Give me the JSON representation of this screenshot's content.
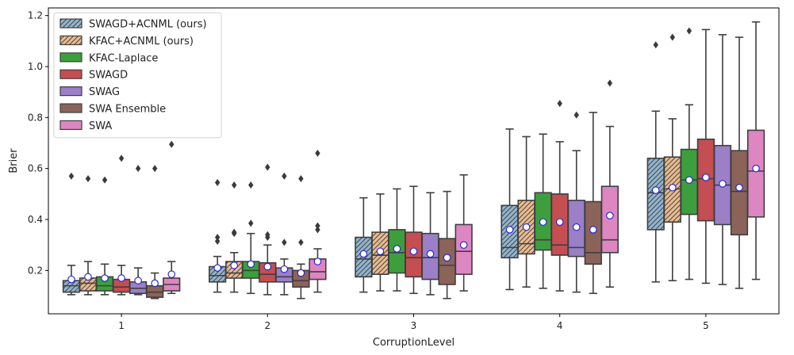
{
  "chart_data": {
    "type": "box",
    "title": "",
    "xlabel": "CorruptionLevel",
    "ylabel": "Brier",
    "categories": [
      "1",
      "2",
      "3",
      "4",
      "5"
    ],
    "ylim": [
      0.03,
      1.23
    ],
    "yticks": [
      0.2,
      0.4,
      0.6,
      0.8,
      1.0,
      1.2
    ],
    "ytick_labels": [
      "0.2",
      "0.4",
      "0.6",
      "0.8",
      "1.0",
      "1.2"
    ],
    "legend_position": "top-left",
    "series": [
      {
        "name": "SWAGD+ACNML (ours)",
        "color": "#92b3cc",
        "hatch": "diagonal",
        "boxes": [
          {
            "whislo": 0.105,
            "q1": 0.115,
            "median": 0.14,
            "q3": 0.16,
            "whishi": 0.22,
            "mean": 0.165,
            "fliers": [
              0.57
            ]
          },
          {
            "whislo": 0.115,
            "q1": 0.155,
            "median": 0.18,
            "q3": 0.215,
            "whishi": 0.255,
            "mean": 0.21,
            "fliers": [
              0.315,
              0.33,
              0.545
            ]
          },
          {
            "whislo": 0.115,
            "q1": 0.175,
            "median": 0.245,
            "q3": 0.33,
            "whishi": 0.485,
            "mean": 0.265,
            "fliers": []
          },
          {
            "whislo": 0.125,
            "q1": 0.25,
            "median": 0.29,
            "q3": 0.455,
            "whishi": 0.755,
            "mean": 0.36,
            "fliers": []
          },
          {
            "whislo": 0.155,
            "q1": 0.36,
            "median": 0.505,
            "q3": 0.64,
            "whishi": 0.825,
            "mean": 0.515,
            "fliers": [
              1.085
            ]
          }
        ]
      },
      {
        "name": "KFAC+ACNML (ours)",
        "color": "#e8ba8f",
        "hatch": "diagonal",
        "boxes": [
          {
            "whislo": 0.105,
            "q1": 0.12,
            "median": 0.15,
            "q3": 0.17,
            "whishi": 0.235,
            "mean": 0.175,
            "fliers": [
              0.56
            ]
          },
          {
            "whislo": 0.115,
            "q1": 0.17,
            "median": 0.19,
            "q3": 0.235,
            "whishi": 0.27,
            "mean": 0.22,
            "fliers": [
              0.345,
              0.35,
              0.535
            ]
          },
          {
            "whislo": 0.12,
            "q1": 0.185,
            "median": 0.26,
            "q3": 0.35,
            "whishi": 0.5,
            "mean": 0.275,
            "fliers": []
          },
          {
            "whislo": 0.135,
            "q1": 0.265,
            "median": 0.305,
            "q3": 0.475,
            "whishi": 0.725,
            "mean": 0.37,
            "fliers": []
          },
          {
            "whislo": 0.16,
            "q1": 0.39,
            "median": 0.52,
            "q3": 0.645,
            "whishi": 0.795,
            "mean": 0.525,
            "fliers": [
              1.115
            ]
          }
        ]
      },
      {
        "name": "KFAC-Laplace",
        "color": "#3d9e3d",
        "hatch": "none",
        "boxes": [
          {
            "whislo": 0.105,
            "q1": 0.12,
            "median": 0.14,
            "q3": 0.175,
            "whishi": 0.225,
            "mean": 0.17,
            "fliers": [
              0.555
            ]
          },
          {
            "whislo": 0.11,
            "q1": 0.17,
            "median": 0.2,
            "q3": 0.235,
            "whishi": 0.345,
            "mean": 0.225,
            "fliers": [
              0.385,
              0.535
            ]
          },
          {
            "whislo": 0.12,
            "q1": 0.19,
            "median": 0.27,
            "q3": 0.36,
            "whishi": 0.52,
            "mean": 0.285,
            "fliers": []
          },
          {
            "whislo": 0.13,
            "q1": 0.28,
            "median": 0.32,
            "q3": 0.505,
            "whishi": 0.735,
            "mean": 0.39,
            "fliers": []
          },
          {
            "whislo": 0.165,
            "q1": 0.42,
            "median": 0.555,
            "q3": 0.675,
            "whishi": 0.85,
            "mean": 0.555,
            "fliers": [
              1.14
            ]
          }
        ]
      },
      {
        "name": "SWAGD",
        "color": "#c44e52",
        "hatch": "none",
        "boxes": [
          {
            "whislo": 0.105,
            "q1": 0.115,
            "median": 0.135,
            "q3": 0.165,
            "whishi": 0.22,
            "mean": 0.17,
            "fliers": [
              0.64
            ]
          },
          {
            "whislo": 0.105,
            "q1": 0.155,
            "median": 0.185,
            "q3": 0.23,
            "whishi": 0.3,
            "mean": 0.215,
            "fliers": [
              0.33,
              0.34,
              0.605
            ]
          },
          {
            "whislo": 0.11,
            "q1": 0.175,
            "median": 0.25,
            "q3": 0.35,
            "whishi": 0.53,
            "mean": 0.275,
            "fliers": []
          },
          {
            "whislo": 0.12,
            "q1": 0.26,
            "median": 0.3,
            "q3": 0.5,
            "whishi": 0.705,
            "mean": 0.39,
            "fliers": [
              0.855
            ]
          },
          {
            "whislo": 0.15,
            "q1": 0.395,
            "median": 0.56,
            "q3": 0.715,
            "whishi": 1.145,
            "mean": 0.565,
            "fliers": []
          }
        ]
      },
      {
        "name": "SWAG",
        "color": "#9b7fc7",
        "hatch": "none",
        "boxes": [
          {
            "whislo": 0.105,
            "q1": 0.11,
            "median": 0.13,
            "q3": 0.155,
            "whishi": 0.21,
            "mean": 0.16,
            "fliers": [
              0.6
            ]
          },
          {
            "whislo": 0.105,
            "q1": 0.155,
            "median": 0.175,
            "q3": 0.21,
            "whishi": 0.245,
            "mean": 0.205,
            "fliers": [
              0.31,
              0.57
            ]
          },
          {
            "whislo": 0.105,
            "q1": 0.165,
            "median": 0.25,
            "q3": 0.345,
            "whishi": 0.505,
            "mean": 0.265,
            "fliers": []
          },
          {
            "whislo": 0.115,
            "q1": 0.255,
            "median": 0.29,
            "q3": 0.475,
            "whishi": 0.67,
            "mean": 0.37,
            "fliers": [
              0.81
            ]
          },
          {
            "whislo": 0.145,
            "q1": 0.38,
            "median": 0.535,
            "q3": 0.69,
            "whishi": 1.125,
            "mean": 0.54,
            "fliers": []
          }
        ]
      },
      {
        "name": "SWA Ensemble",
        "color": "#8c6359",
        "hatch": "none",
        "boxes": [
          {
            "whislo": 0.09,
            "q1": 0.095,
            "median": 0.115,
            "q3": 0.14,
            "whishi": 0.19,
            "mean": 0.15,
            "fliers": [
              0.6
            ]
          },
          {
            "whislo": 0.09,
            "q1": 0.135,
            "median": 0.16,
            "q3": 0.2,
            "whishi": 0.225,
            "mean": 0.19,
            "fliers": [
              0.31,
              0.56
            ]
          },
          {
            "whislo": 0.09,
            "q1": 0.145,
            "median": 0.22,
            "q3": 0.325,
            "whishi": 0.51,
            "mean": 0.25,
            "fliers": []
          },
          {
            "whislo": 0.11,
            "q1": 0.225,
            "median": 0.27,
            "q3": 0.47,
            "whishi": 0.82,
            "mean": 0.36,
            "fliers": []
          },
          {
            "whislo": 0.13,
            "q1": 0.34,
            "median": 0.51,
            "q3": 0.67,
            "whishi": 1.115,
            "mean": 0.525,
            "fliers": []
          }
        ]
      },
      {
        "name": "SWA",
        "color": "#dd86c2",
        "hatch": "none",
        "boxes": [
          {
            "whislo": 0.11,
            "q1": 0.12,
            "median": 0.145,
            "q3": 0.17,
            "whishi": 0.235,
            "mean": 0.185,
            "fliers": [
              0.695
            ]
          },
          {
            "whislo": 0.115,
            "q1": 0.165,
            "median": 0.195,
            "q3": 0.245,
            "whishi": 0.285,
            "mean": 0.235,
            "fliers": [
              0.36,
              0.375,
              0.66
            ]
          },
          {
            "whislo": 0.12,
            "q1": 0.185,
            "median": 0.275,
            "q3": 0.38,
            "whishi": 0.575,
            "mean": 0.3,
            "fliers": []
          },
          {
            "whislo": 0.135,
            "q1": 0.27,
            "median": 0.32,
            "q3": 0.53,
            "whishi": 0.765,
            "mean": 0.415,
            "fliers": [
              0.935
            ]
          },
          {
            "whislo": 0.165,
            "q1": 0.41,
            "median": 0.59,
            "q3": 0.75,
            "whishi": 1.175,
            "mean": 0.6,
            "fliers": []
          }
        ]
      }
    ]
  }
}
